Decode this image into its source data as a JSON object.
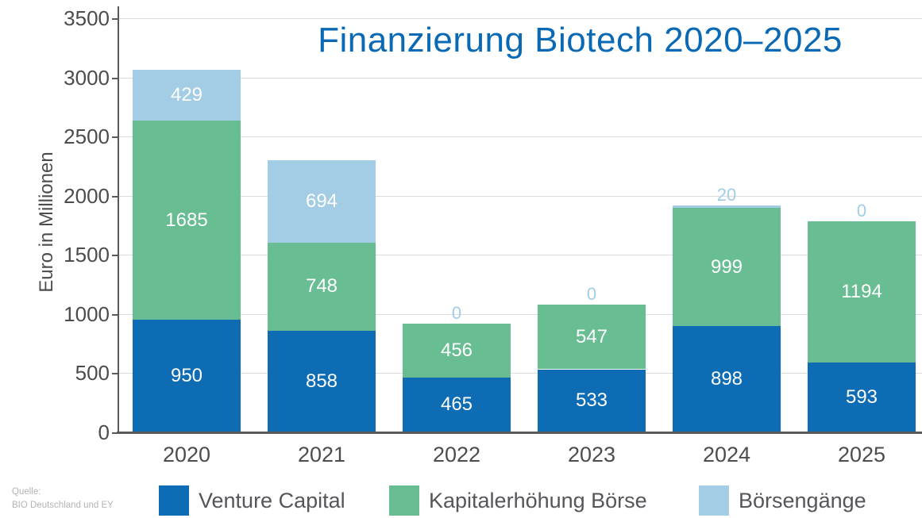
{
  "chart_data": {
    "type": "stacked-bar",
    "title": "Finanzierung Biotech 2020–2025",
    "ylabel": "Euro in Millionen",
    "categories": [
      "2020",
      "2021",
      "2022",
      "2023",
      "2024",
      "2025"
    ],
    "series": [
      {
        "name": "Venture Capital",
        "color": "#0E6CB5",
        "values": [
          950,
          858,
          465,
          533,
          898,
          593
        ]
      },
      {
        "name": "Kapitalerhöhung Börse",
        "color": "#69BD93",
        "values": [
          1685,
          748,
          456,
          547,
          999,
          1194
        ]
      },
      {
        "name": "Börsengänge",
        "color": "#A2CDE4",
        "values": [
          429,
          694,
          0,
          0,
          20,
          0
        ]
      }
    ],
    "ylim": [
      0,
      3500
    ],
    "yticks": [
      "0",
      "500",
      "1000",
      "1500",
      "2000",
      "2500",
      "3000",
      "3500"
    ],
    "grid": true,
    "legend_position": "bottom",
    "value_labels": true
  },
  "source": {
    "line1": "Quelle:",
    "line2": "BIO Deutschland und EY"
  },
  "colors": {
    "title": "#0A69B4",
    "axis": "#58595B",
    "gridline": "#DBDBDB",
    "tick_label": "#4B4C4E",
    "legend_label": "#55565A",
    "source_text": "#B2B4B6",
    "bar_label": "#FFFFFF",
    "outside_label": "#A2CDE4",
    "background": "#FFFFFF"
  }
}
